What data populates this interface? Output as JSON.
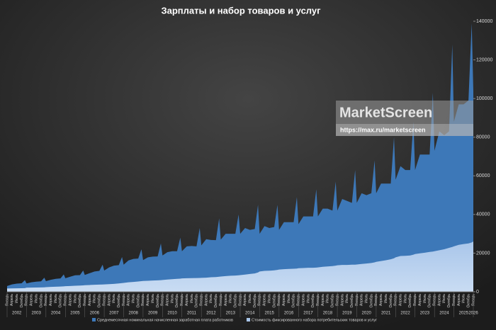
{
  "chart_data": {
    "type": "area",
    "title": "Зарплаты и набор товаров и услуг",
    "categories": [
      "Январь",
      "Апрель",
      "Июль",
      "Октябрь",
      null,
      "Январь",
      "Апрель",
      "Июль",
      "Октябрь",
      null,
      "Январь",
      "Апрель",
      "Июль",
      "Октябрь",
      null,
      "Январь",
      "Апрель",
      "Июль",
      "Октябрь",
      null,
      "Январь",
      "Апрель",
      "Июль",
      "Октябрь",
      null,
      "Январь",
      "Апрель",
      "Июль",
      "Октябрь",
      null,
      "Январь",
      "Апрель",
      "Июль",
      "Октябрь",
      null,
      "Январь",
      "Апрель",
      "Июль",
      "Октябрь",
      null,
      "Январь",
      "Апрель",
      "Июль",
      "Октябрь",
      null,
      "Январь",
      "Апрель",
      "Июль",
      "Октябрь",
      null,
      "Январь",
      "Апрель",
      "Июль",
      "Октябрь",
      null,
      "Январь",
      "Апрель",
      "Июль",
      "Октябрь",
      null,
      "Январь",
      "Апрель",
      "Июль",
      "Октябрь",
      null,
      "Январь",
      "Апрель",
      "Июль",
      "Октябрь",
      null,
      "Январь",
      "Апрель",
      "Июль",
      "Октябрь",
      null,
      "Январь",
      "Апрель",
      "Июль",
      "Октябрь",
      null,
      "Январь",
      "Апрель",
      "Июль",
      "Октябрь",
      null,
      "Январь",
      "Апрель",
      "Июль",
      "Октябрь",
      null,
      "Январь",
      "Апрель",
      "Июль",
      "Октябрь",
      null,
      "Январь",
      "Апрель",
      "Июль",
      "Октябрь",
      null,
      "Январь",
      "Апрель",
      "Июль",
      "Октябрь",
      null,
      "Январь",
      "Апрель",
      "Июль",
      "Октябрь",
      null,
      "Январь",
      "Апрель",
      "Июль",
      "Октябрь",
      null,
      "Январь",
      "Апрель",
      "Июль",
      "Октябрь",
      null,
      "Январь"
    ],
    "years": [
      "2002",
      "2003",
      "2004",
      "2005",
      "2006",
      "2007",
      "2008",
      "2009",
      "2010",
      "2011",
      "2012",
      "2013",
      "2014",
      "2015",
      "2016",
      "2017",
      "2018",
      "2019",
      "2020",
      "2021",
      "2022",
      "2023",
      "2024",
      "2025",
      "2026"
    ],
    "series": [
      {
        "name": "Среднемесячная номинальная начисленная заработная плата работников",
        "color": "#3d78b8",
        "values": [
          3000,
          3800,
          4200,
          4400,
          6000,
          4300,
          4900,
          5200,
          5400,
          7300,
          5500,
          6200,
          6700,
          6900,
          9000,
          7000,
          7800,
          8500,
          8600,
          11000,
          8700,
          9600,
          10500,
          10800,
          14000,
          11000,
          12600,
          13500,
          13800,
          18000,
          14000,
          16200,
          17000,
          17200,
          22000,
          16400,
          17800,
          18200,
          18300,
          25000,
          18800,
          20500,
          21000,
          21000,
          28000,
          21000,
          23500,
          23700,
          23500,
          33000,
          24000,
          27200,
          26800,
          26700,
          38000,
          27000,
          30000,
          30000,
          30000,
          40000,
          30000,
          33000,
          32000,
          32500,
          45000,
          30000,
          34000,
          33000,
          33500,
          45000,
          32000,
          36000,
          36000,
          36000,
          49000,
          35000,
          39000,
          39000,
          39000,
          53000,
          39000,
          43000,
          43000,
          42000,
          57000,
          42000,
          48000,
          47000,
          46000,
          63000,
          46000,
          51000,
          50000,
          51000,
          68000,
          51000,
          56000,
          56000,
          56000,
          80000,
          58000,
          65000,
          63000,
          63000,
          88000,
          63000,
          71000,
          71000,
          71000,
          103000,
          73000,
          83000,
          81000,
          83000,
          128000,
          88000,
          97000,
          97000,
          99000,
          139000,
          104000
        ]
      },
      {
        "name": "Стоимость фиксированного набора потребительских товаров и услуг",
        "color": "#a9c6ea",
        "values": [
          1700,
          1750,
          1800,
          1850,
          1900,
          2100,
          2150,
          2200,
          2250,
          2300,
          2400,
          2500,
          2600,
          2700,
          2800,
          2900,
          3000,
          3100,
          3200,
          3300,
          3400,
          3500,
          3600,
          3700,
          3750,
          3800,
          3950,
          4100,
          4300,
          4500,
          4600,
          4900,
          5100,
          5300,
          5500,
          5600,
          5700,
          5800,
          5900,
          6000,
          6100,
          6300,
          6500,
          6700,
          6800,
          6900,
          7000,
          7050,
          7100,
          7150,
          7200,
          7300,
          7500,
          7600,
          7800,
          7900,
          8100,
          8300,
          8400,
          8500,
          8600,
          8900,
          9200,
          9500,
          10000,
          10500,
          10800,
          10900,
          11100,
          11300,
          11500,
          11700,
          11800,
          11900,
          12000,
          12200,
          12300,
          12400,
          12400,
          12500,
          12600,
          12900,
          13100,
          13300,
          13500,
          13700,
          13900,
          13900,
          14000,
          14000,
          14100,
          14400,
          14600,
          14900,
          15200,
          15500,
          15900,
          16300,
          16800,
          17300,
          17800,
          18500,
          18600,
          18800,
          19200,
          19500,
          19900,
          20200,
          20600,
          20800,
          21000,
          21500,
          22000,
          22700,
          23200,
          23500,
          24300,
          24700,
          25000,
          25500,
          26000
        ]
      }
    ],
    "ylim": [
      0,
      140000
    ],
    "yticks": [
      0,
      20000,
      40000,
      60000,
      80000,
      100000,
      120000,
      140000
    ]
  },
  "watermark": {
    "name": "MarketScreen",
    "url": "https://max.ru/marketscreen"
  }
}
